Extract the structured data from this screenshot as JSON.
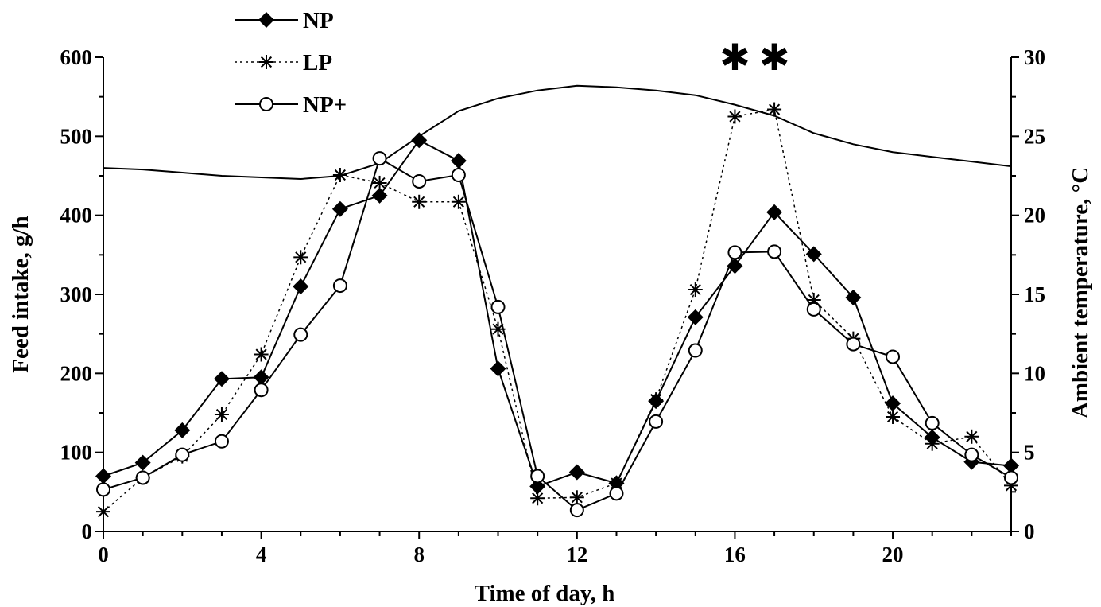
{
  "chart_data": {
    "type": "line",
    "xlabel": "Time of day, h",
    "ylabel": "Feed intake, g/h",
    "y2label": "Ambient temperature, °C",
    "xlim": [
      0,
      23
    ],
    "ylim": [
      0,
      600
    ],
    "y2lim": [
      0,
      30
    ],
    "x_ticks": [
      0,
      4,
      8,
      12,
      16,
      20
    ],
    "y_ticks": [
      0,
      100,
      200,
      300,
      400,
      500,
      600
    ],
    "y2_ticks": [
      0,
      5,
      10,
      15,
      20,
      25,
      30
    ],
    "legend_position": "top-left",
    "grid": false,
    "series": [
      {
        "name": "NP",
        "marker": "filled-diamond",
        "line": "solid",
        "x": [
          0,
          1,
          2,
          3,
          4,
          5,
          6,
          7,
          8,
          9,
          10,
          11,
          12,
          13,
          14,
          15,
          16,
          17,
          18,
          19,
          20,
          21,
          22,
          23
        ],
        "y": [
          70,
          87,
          128,
          193,
          195,
          310,
          408,
          425,
          495,
          469,
          206,
          57,
          75,
          61,
          165,
          271,
          336,
          404,
          351,
          296,
          162,
          119,
          88,
          83
        ]
      },
      {
        "name": "LP",
        "marker": "asterisk",
        "line": "dotted",
        "x": [
          0,
          1,
          2,
          3,
          4,
          5,
          6,
          7,
          8,
          9,
          10,
          11,
          12,
          13,
          14,
          15,
          16,
          17,
          18,
          19,
          20,
          21,
          22,
          23
        ],
        "y": [
          25,
          68,
          95,
          148,
          224,
          347,
          451,
          441,
          417,
          417,
          256,
          42,
          43,
          61,
          167,
          306,
          525,
          534,
          293,
          244,
          145,
          111,
          120,
          58
        ]
      },
      {
        "name": "NP+",
        "marker": "open-circle",
        "line": "solid",
        "x": [
          0,
          1,
          2,
          3,
          4,
          5,
          6,
          7,
          8,
          9,
          10,
          11,
          12,
          13,
          14,
          15,
          16,
          17,
          18,
          19,
          20,
          21,
          22,
          23
        ],
        "y": [
          53,
          68,
          97,
          114,
          179,
          249,
          311,
          472,
          443,
          451,
          284,
          70,
          27,
          48,
          139,
          229,
          353,
          354,
          281,
          237,
          221,
          137,
          97,
          68
        ]
      },
      {
        "name": "Ambient temperature",
        "axis": "right",
        "marker": "none",
        "line": "solid",
        "x": [
          0,
          1,
          2,
          3,
          4,
          5,
          6,
          7,
          8,
          9,
          10,
          11,
          12,
          13,
          14,
          15,
          16,
          17,
          18,
          19,
          20,
          21,
          22,
          23
        ],
        "y": [
          23.0,
          22.9,
          22.7,
          22.5,
          22.4,
          22.3,
          22.5,
          23.3,
          25.0,
          26.6,
          27.4,
          27.9,
          28.2,
          28.1,
          27.9,
          27.6,
          27.0,
          26.3,
          25.2,
          24.5,
          24.0,
          23.7,
          23.4,
          23.1
        ]
      }
    ],
    "annotations": [
      {
        "text": "✱",
        "x": 16,
        "y_right": 30
      },
      {
        "text": "✱",
        "x": 17,
        "y_right": 30
      }
    ]
  }
}
